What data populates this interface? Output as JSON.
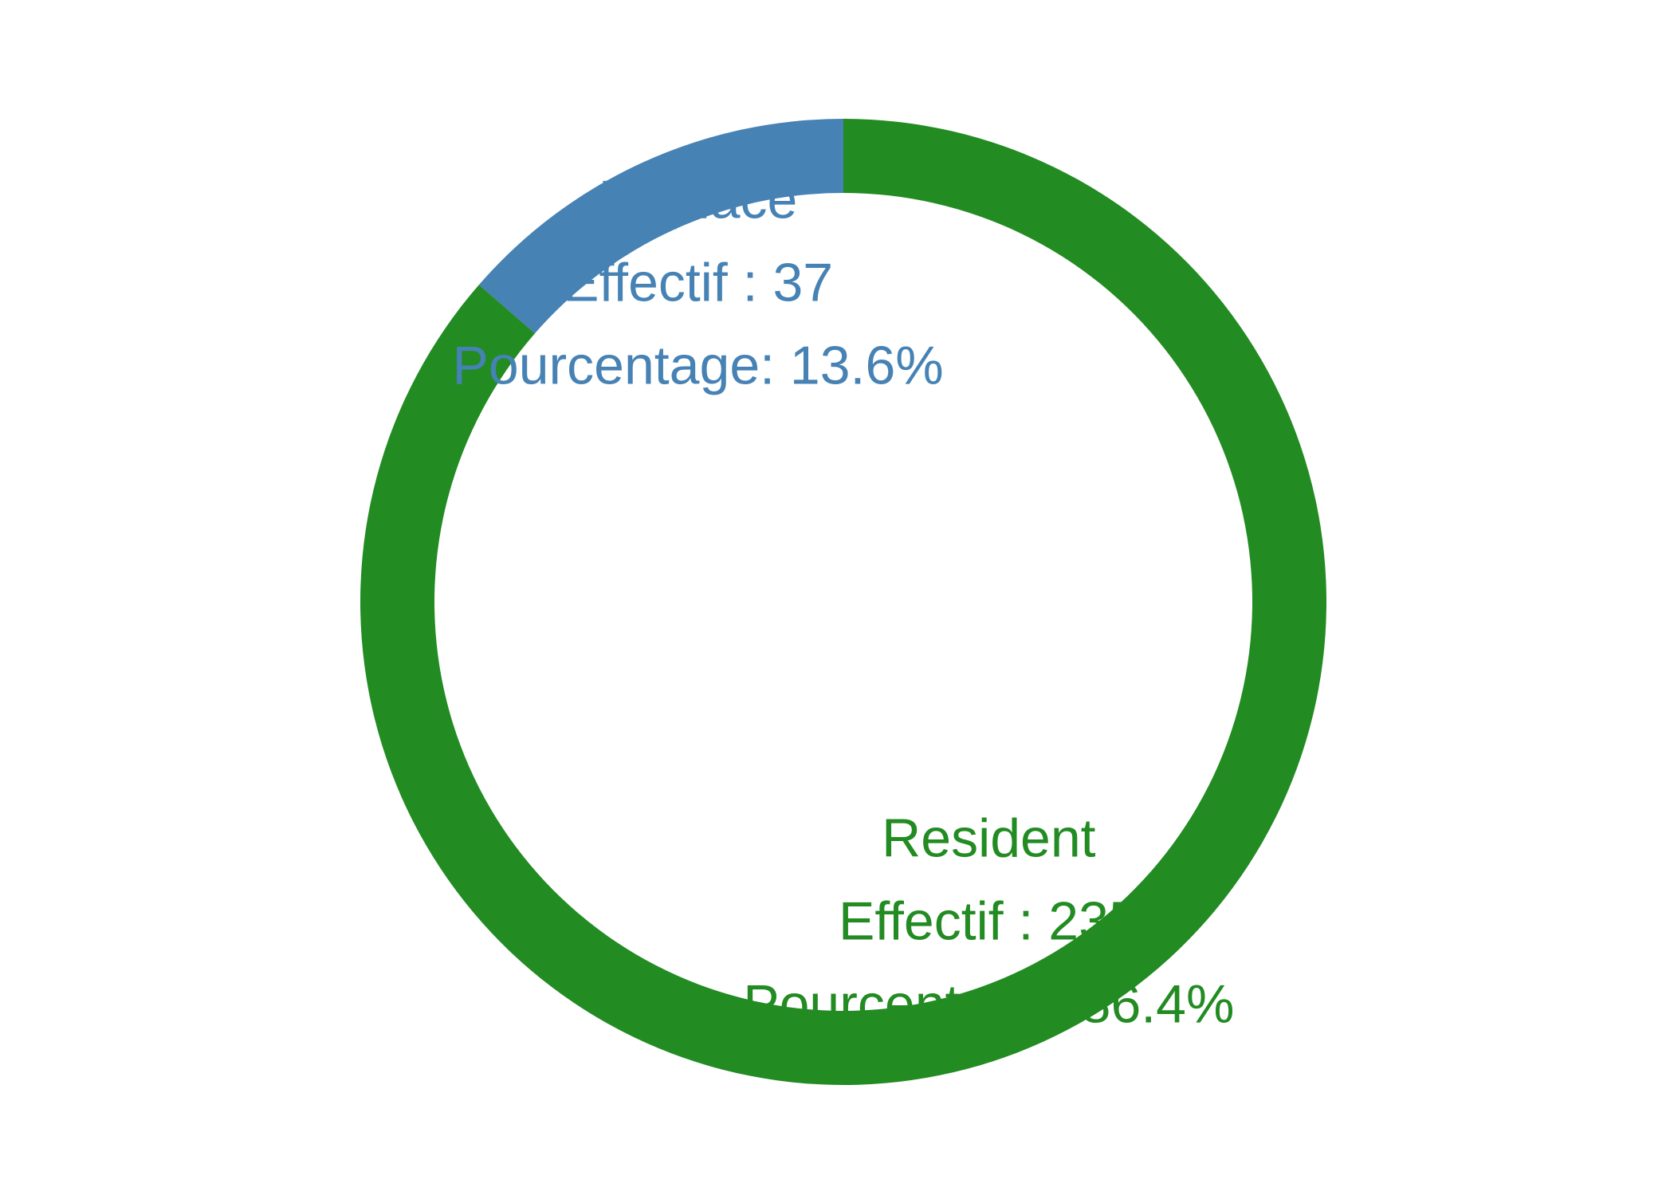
{
  "chart_data": {
    "type": "pie",
    "style": "donut",
    "segments": [
      {
        "category": "Déplacé",
        "count": 37,
        "percent": 13.6,
        "color": "#4682B4",
        "label_lines": [
          "Déplacé",
          "Effectif : 37",
          "Pourcentage: 13.6%"
        ]
      },
      {
        "category": "Resident",
        "count": 235,
        "percent": 86.4,
        "color": "#228B22",
        "label_lines": [
          "Resident",
          "Effectif : 235",
          "Pourcentage: 86.4%"
        ]
      }
    ],
    "legend": "none",
    "grid": false
  }
}
